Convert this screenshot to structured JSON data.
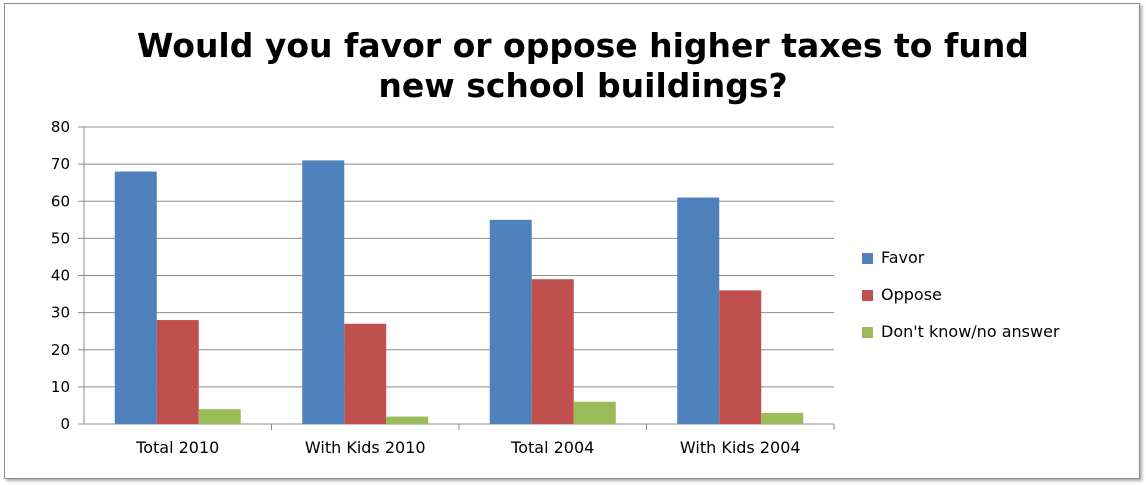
{
  "chart_data": {
    "type": "bar",
    "title": [
      "Would you favor or oppose higher taxes to fund",
      "new school buildings?"
    ],
    "categories": [
      "Total 2010",
      "With Kids 2010",
      "Total 2004",
      "With Kids 2004"
    ],
    "series": [
      {
        "name": "Favor",
        "color": "#4F81BD",
        "values": [
          68,
          71,
          55,
          61
        ]
      },
      {
        "name": "Oppose",
        "color": "#C0504D",
        "values": [
          28,
          27,
          39,
          36
        ]
      },
      {
        "name": "Don't know/no answer",
        "color": "#9BBB59",
        "values": [
          4,
          2,
          6,
          3
        ]
      }
    ],
    "ylim": [
      0,
      80
    ],
    "yticks": [
      "0",
      "10",
      "20",
      "30",
      "40",
      "50",
      "60",
      "70",
      "80"
    ],
    "grid": true,
    "legend_position": "right"
  }
}
